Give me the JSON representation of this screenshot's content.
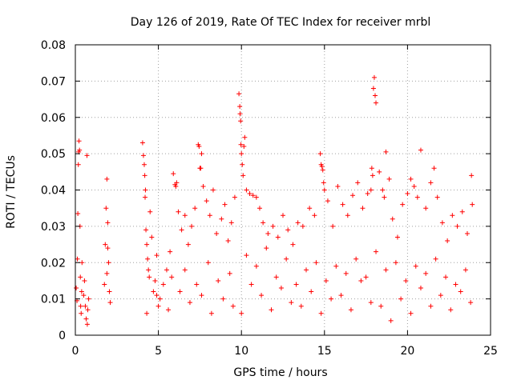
{
  "chart_data": {
    "type": "scatter",
    "title": "Day 126 of 2019, Rate Of TEC Index for receiver mrbl",
    "xlabel": "GPS time / hours",
    "ylabel": "ROTI / TECUs",
    "xlim": [
      0,
      25
    ],
    "ylim": [
      0,
      0.08
    ],
    "xticks": [
      0,
      5,
      10,
      15,
      20,
      25
    ],
    "xtick_labels": [
      "0",
      "5",
      "10",
      "15",
      "20",
      "25"
    ],
    "yticks": [
      0,
      0.01,
      0.02,
      0.03,
      0.04,
      0.05,
      0.06,
      0.07,
      0.08
    ],
    "ytick_labels": [
      "0",
      "0.01",
      "0.02",
      "0.03",
      "0.04",
      "0.05",
      "0.06",
      "0.07",
      "0.08"
    ],
    "grid": true,
    "marker": "+",
    "color": "#ff0000",
    "series": [
      {
        "name": "ROTI",
        "points": [
          [
            0.05,
            0.013
          ],
          [
            0.1,
            0.0095
          ],
          [
            0.12,
            0.021
          ],
          [
            0.15,
            0.0335
          ],
          [
            0.18,
            0.047
          ],
          [
            0.2,
            0.0505
          ],
          [
            0.22,
            0.0535
          ],
          [
            0.25,
            0.051
          ],
          [
            0.28,
            0.03
          ],
          [
            0.3,
            0.016
          ],
          [
            0.32,
            0.008
          ],
          [
            0.35,
            0.006
          ],
          [
            0.38,
            0.012
          ],
          [
            0.4,
            0.02
          ],
          [
            0.5,
            0.011
          ],
          [
            0.55,
            0.015
          ],
          [
            0.6,
            0.008
          ],
          [
            0.65,
            0.0045
          ],
          [
            0.7,
            0.0495
          ],
          [
            0.72,
            0.003
          ],
          [
            0.75,
            0.007
          ],
          [
            0.8,
            0.01
          ],
          [
            1.75,
            0.014
          ],
          [
            1.8,
            0.025
          ],
          [
            1.85,
            0.035
          ],
          [
            1.9,
            0.043
          ],
          [
            1.95,
            0.031
          ],
          [
            2.0,
            0.02
          ],
          [
            2.05,
            0.012
          ],
          [
            2.1,
            0.009
          ],
          [
            1.9,
            0.017
          ],
          [
            1.95,
            0.024
          ],
          [
            4.05,
            0.053
          ],
          [
            4.1,
            0.0495
          ],
          [
            4.15,
            0.047
          ],
          [
            4.18,
            0.044
          ],
          [
            4.2,
            0.038
          ],
          [
            4.22,
            0.04
          ],
          [
            4.25,
            0.029
          ],
          [
            4.3,
            0.025
          ],
          [
            4.35,
            0.021
          ],
          [
            4.4,
            0.018
          ],
          [
            4.45,
            0.016
          ],
          [
            4.5,
            0.034
          ],
          [
            4.6,
            0.027
          ],
          [
            4.7,
            0.012
          ],
          [
            4.8,
            0.015
          ],
          [
            4.9,
            0.022
          ],
          [
            5.1,
            0.01
          ],
          [
            5.3,
            0.014
          ],
          [
            5.5,
            0.018
          ],
          [
            5.7,
            0.023
          ],
          [
            5.9,
            0.0445
          ],
          [
            6.0,
            0.0415
          ],
          [
            6.05,
            0.041
          ],
          [
            6.1,
            0.042
          ],
          [
            6.2,
            0.034
          ],
          [
            6.4,
            0.029
          ],
          [
            6.6,
            0.033
          ],
          [
            6.8,
            0.025
          ],
          [
            7.0,
            0.03
          ],
          [
            7.2,
            0.035
          ],
          [
            7.4,
            0.0525
          ],
          [
            7.45,
            0.052
          ],
          [
            7.5,
            0.046
          ],
          [
            7.55,
            0.046
          ],
          [
            7.6,
            0.05
          ],
          [
            7.7,
            0.041
          ],
          [
            7.9,
            0.037
          ],
          [
            8.1,
            0.033
          ],
          [
            8.3,
            0.04
          ],
          [
            8.5,
            0.028
          ],
          [
            8.8,
            0.032
          ],
          [
            9.0,
            0.036
          ],
          [
            9.2,
            0.026
          ],
          [
            9.4,
            0.031
          ],
          [
            9.6,
            0.038
          ],
          [
            9.85,
            0.0665
          ],
          [
            9.9,
            0.063
          ],
          [
            9.92,
            0.061
          ],
          [
            9.95,
            0.059
          ],
          [
            9.97,
            0.0525
          ],
          [
            10.0,
            0.05
          ],
          [
            10.05,
            0.047
          ],
          [
            10.1,
            0.044
          ],
          [
            10.15,
            0.052
          ],
          [
            10.2,
            0.0545
          ],
          [
            10.3,
            0.04
          ],
          [
            10.5,
            0.039
          ],
          [
            10.7,
            0.0385
          ],
          [
            10.9,
            0.038
          ],
          [
            11.1,
            0.035
          ],
          [
            11.3,
            0.031
          ],
          [
            11.6,
            0.028
          ],
          [
            11.9,
            0.03
          ],
          [
            12.2,
            0.027
          ],
          [
            12.5,
            0.033
          ],
          [
            12.8,
            0.029
          ],
          [
            13.1,
            0.025
          ],
          [
            13.4,
            0.031
          ],
          [
            13.7,
            0.03
          ],
          [
            14.1,
            0.035
          ],
          [
            14.4,
            0.033
          ],
          [
            14.75,
            0.05
          ],
          [
            14.8,
            0.047
          ],
          [
            14.85,
            0.0465
          ],
          [
            14.9,
            0.0455
          ],
          [
            14.95,
            0.042
          ],
          [
            15.0,
            0.04
          ],
          [
            15.2,
            0.037
          ],
          [
            15.5,
            0.03
          ],
          [
            15.8,
            0.041
          ],
          [
            16.1,
            0.036
          ],
          [
            16.4,
            0.033
          ],
          [
            16.7,
            0.0385
          ],
          [
            17.0,
            0.042
          ],
          [
            17.3,
            0.035
          ],
          [
            17.6,
            0.039
          ],
          [
            17.8,
            0.04
          ],
          [
            17.85,
            0.046
          ],
          [
            17.9,
            0.044
          ],
          [
            17.95,
            0.068
          ],
          [
            18.0,
            0.071
          ],
          [
            18.05,
            0.066
          ],
          [
            18.1,
            0.064
          ],
          [
            18.3,
            0.045
          ],
          [
            18.5,
            0.04
          ],
          [
            18.6,
            0.038
          ],
          [
            18.7,
            0.0505
          ],
          [
            18.9,
            0.043
          ],
          [
            19.1,
            0.032
          ],
          [
            19.4,
            0.027
          ],
          [
            19.7,
            0.036
          ],
          [
            20.0,
            0.039
          ],
          [
            20.2,
            0.043
          ],
          [
            20.4,
            0.041
          ],
          [
            20.6,
            0.038
          ],
          [
            20.8,
            0.051
          ],
          [
            21.1,
            0.035
          ],
          [
            21.4,
            0.042
          ],
          [
            21.6,
            0.046
          ],
          [
            21.8,
            0.038
          ],
          [
            22.1,
            0.031
          ],
          [
            22.4,
            0.026
          ],
          [
            22.7,
            0.033
          ],
          [
            23.0,
            0.03
          ],
          [
            23.3,
            0.034
          ],
          [
            23.6,
            0.028
          ],
          [
            23.85,
            0.044
          ],
          [
            23.9,
            0.036
          ],
          [
            5.0,
            0.008
          ],
          [
            5.6,
            0.007
          ],
          [
            6.3,
            0.012
          ],
          [
            6.9,
            0.009
          ],
          [
            7.6,
            0.011
          ],
          [
            8.2,
            0.006
          ],
          [
            8.9,
            0.01
          ],
          [
            9.5,
            0.008
          ],
          [
            10.0,
            0.006
          ],
          [
            10.6,
            0.014
          ],
          [
            11.2,
            0.011
          ],
          [
            11.8,
            0.007
          ],
          [
            12.4,
            0.013
          ],
          [
            13.0,
            0.009
          ],
          [
            13.6,
            0.008
          ],
          [
            14.2,
            0.012
          ],
          [
            14.8,
            0.006
          ],
          [
            15.4,
            0.01
          ],
          [
            16.0,
            0.011
          ],
          [
            16.6,
            0.007
          ],
          [
            17.2,
            0.015
          ],
          [
            17.8,
            0.009
          ],
          [
            18.4,
            0.008
          ],
          [
            19.0,
            0.004
          ],
          [
            19.6,
            0.01
          ],
          [
            20.2,
            0.006
          ],
          [
            20.8,
            0.013
          ],
          [
            21.4,
            0.008
          ],
          [
            22.0,
            0.011
          ],
          [
            22.6,
            0.007
          ],
          [
            23.2,
            0.012
          ],
          [
            23.8,
            0.009
          ],
          [
            4.3,
            0.006
          ],
          [
            4.9,
            0.011
          ],
          [
            5.8,
            0.016
          ],
          [
            6.6,
            0.018
          ],
          [
            7.3,
            0.014
          ],
          [
            8.0,
            0.02
          ],
          [
            8.6,
            0.015
          ],
          [
            9.3,
            0.017
          ],
          [
            10.3,
            0.022
          ],
          [
            10.9,
            0.019
          ],
          [
            11.5,
            0.024
          ],
          [
            12.1,
            0.016
          ],
          [
            12.7,
            0.021
          ],
          [
            13.3,
            0.014
          ],
          [
            13.9,
            0.018
          ],
          [
            14.5,
            0.02
          ],
          [
            15.1,
            0.015
          ],
          [
            15.7,
            0.019
          ],
          [
            16.3,
            0.017
          ],
          [
            16.9,
            0.021
          ],
          [
            17.5,
            0.016
          ],
          [
            18.1,
            0.023
          ],
          [
            18.7,
            0.018
          ],
          [
            19.3,
            0.02
          ],
          [
            19.9,
            0.015
          ],
          [
            20.5,
            0.019
          ],
          [
            21.1,
            0.017
          ],
          [
            21.7,
            0.021
          ],
          [
            22.3,
            0.016
          ],
          [
            22.9,
            0.014
          ],
          [
            23.5,
            0.018
          ]
        ]
      }
    ]
  }
}
